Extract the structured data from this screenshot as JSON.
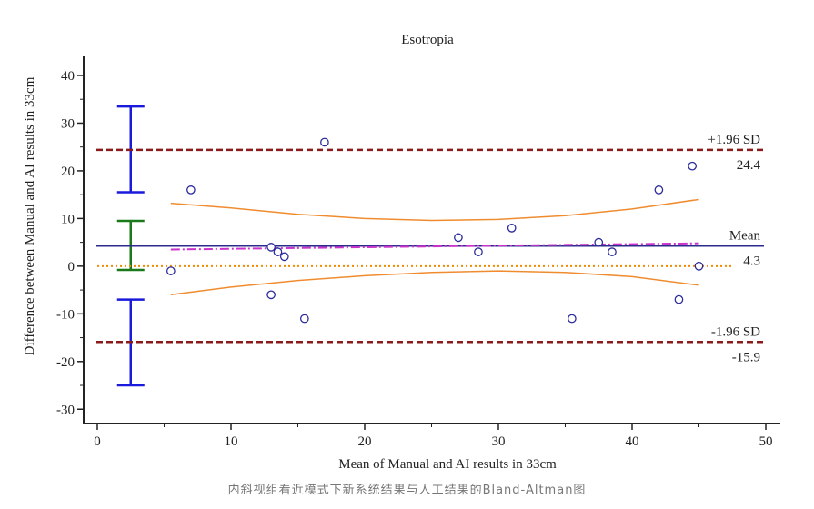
{
  "caption": "内斜视组看近模式下新系统结果与人工结果的Bland-Altman图",
  "chart_data": {
    "type": "scatter",
    "title": "Esotropia",
    "xlabel": "Mean of Manual and AI results in 33cm",
    "ylabel": "Difference between Manual and AI results in 33cm",
    "xlim": [
      0,
      50
    ],
    "ylim": [
      -33,
      44
    ],
    "x_ticks": [
      0,
      10,
      20,
      30,
      40,
      50
    ],
    "y_ticks": [
      -30,
      -20,
      -10,
      0,
      10,
      20,
      30,
      40
    ],
    "grid": false,
    "points": [
      {
        "x": 5.5,
        "y": -1
      },
      {
        "x": 7,
        "y": 16
      },
      {
        "x": 13,
        "y": 4
      },
      {
        "x": 13.5,
        "y": 3
      },
      {
        "x": 14,
        "y": 2
      },
      {
        "x": 13,
        "y": -6
      },
      {
        "x": 15.5,
        "y": -11
      },
      {
        "x": 17,
        "y": 26
      },
      {
        "x": 27,
        "y": 6
      },
      {
        "x": 28.5,
        "y": 3
      },
      {
        "x": 31,
        "y": 8
      },
      {
        "x": 35.5,
        "y": -11
      },
      {
        "x": 37.5,
        "y": 5
      },
      {
        "x": 38.5,
        "y": 3
      },
      {
        "x": 42,
        "y": 16
      },
      {
        "x": 43.5,
        "y": -7
      },
      {
        "x": 44.5,
        "y": 21
      },
      {
        "x": 45,
        "y": 0
      }
    ],
    "reference_lines": [
      {
        "name": "Mean",
        "label": "Mean",
        "value": 4.3,
        "value_label": "4.3",
        "color": "#2b2b8c",
        "style": "solid"
      },
      {
        "name": "+1.96 SD",
        "label": "+1.96 SD",
        "value": 24.4,
        "value_label": "24.4",
        "color": "#8b1a1a",
        "style": "dashed"
      },
      {
        "name": "-1.96 SD",
        "label": "-1.96 SD",
        "value": -15.9,
        "value_label": "-15.9",
        "color": "#8b1a1a",
        "style": "dashed"
      },
      {
        "name": "zero",
        "label": "",
        "value": 0,
        "value_label": "",
        "color": "#f08c00",
        "style": "dotted"
      }
    ],
    "regression_line": {
      "x": [
        5.5,
        45
      ],
      "y": [
        3.5,
        4.8
      ],
      "color": "#cc33cc"
    },
    "confidence_curves": {
      "color": "#f08c30",
      "x": [
        5.5,
        10,
        15,
        20,
        25,
        30,
        35,
        40,
        45
      ],
      "upper": [
        13.2,
        12.2,
        10.9,
        10.0,
        9.6,
        9.8,
        10.6,
        12.0,
        14.0
      ],
      "lower": [
        -6.0,
        -4.4,
        -3.0,
        -2.0,
        -1.3,
        -1.0,
        -1.3,
        -2.2,
        -4.0
      ]
    },
    "error_bars": [
      {
        "name": "upper-loa-ci",
        "x": 2.5,
        "low": 15.5,
        "high": 33.5,
        "color": "#1a1adc"
      },
      {
        "name": "mean-ci",
        "x": 2.5,
        "low": -0.8,
        "high": 9.5,
        "color": "#1a7a1a"
      },
      {
        "name": "lower-loa-ci",
        "x": 2.5,
        "low": -25,
        "high": -7,
        "color": "#1a1adc"
      }
    ],
    "point_color": "#2b2b9c"
  }
}
